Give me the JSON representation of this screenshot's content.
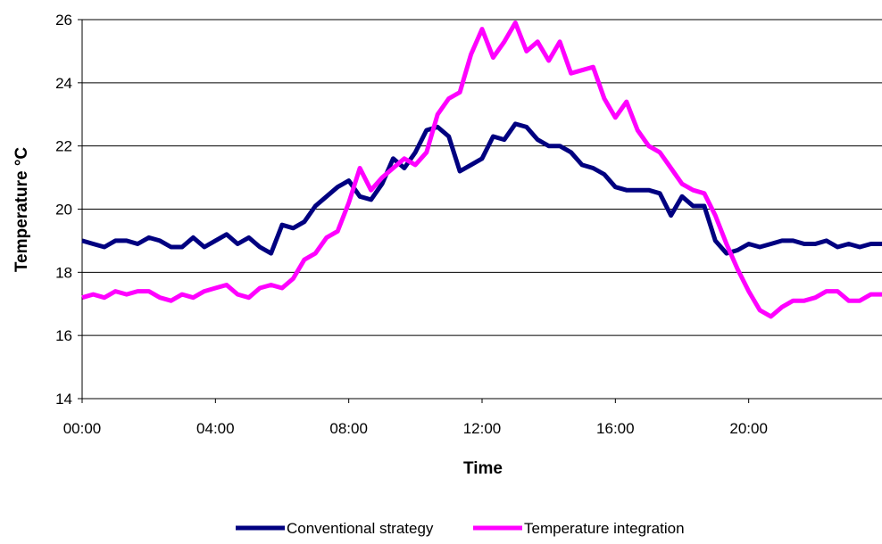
{
  "chart_data": {
    "type": "line",
    "xlabel": "Time",
    "ylabel": "Temperature °C",
    "ylim": [
      14,
      26
    ],
    "yticks": [
      "14",
      "16",
      "18",
      "20",
      "22",
      "24",
      "26"
    ],
    "xlim": [
      "00:00",
      "24:00"
    ],
    "xticks": [
      "00:00",
      "04:00",
      "08:00",
      "12:00",
      "16:00",
      "20:00"
    ],
    "grid": "horizontal",
    "legend_position": "bottom",
    "series": [
      {
        "name": "Conventional strategy",
        "color": "#000080",
        "x": [
          "00:00",
          "00:20",
          "00:40",
          "01:00",
          "01:20",
          "01:40",
          "02:00",
          "02:20",
          "02:40",
          "03:00",
          "03:20",
          "03:40",
          "04:00",
          "04:20",
          "04:40",
          "05:00",
          "05:20",
          "05:40",
          "06:00",
          "06:20",
          "06:40",
          "07:00",
          "07:20",
          "07:40",
          "08:00",
          "08:20",
          "08:40",
          "09:00",
          "09:20",
          "09:40",
          "10:00",
          "10:20",
          "10:40",
          "11:00",
          "11:20",
          "11:40",
          "12:00",
          "12:20",
          "12:40",
          "13:00",
          "13:20",
          "13:40",
          "14:00",
          "14:20",
          "14:40",
          "15:00",
          "15:20",
          "15:40",
          "16:00",
          "16:20",
          "16:40",
          "17:00",
          "17:20",
          "17:40",
          "18:00",
          "18:20",
          "18:40",
          "19:00",
          "19:20",
          "19:40",
          "20:00",
          "20:20",
          "20:40",
          "21:00",
          "21:20",
          "21:40",
          "22:00",
          "22:20",
          "22:40",
          "23:00",
          "23:20",
          "23:40",
          "24:00"
        ],
        "values": [
          19.0,
          18.9,
          18.8,
          19.0,
          19.0,
          18.9,
          19.1,
          19.0,
          18.8,
          18.8,
          19.1,
          18.8,
          19.0,
          19.2,
          18.9,
          19.1,
          18.8,
          18.6,
          19.5,
          19.4,
          19.6,
          20.1,
          20.4,
          20.7,
          20.9,
          20.4,
          20.3,
          20.8,
          21.6,
          21.3,
          21.8,
          22.5,
          22.6,
          22.3,
          21.2,
          21.4,
          21.6,
          22.3,
          22.2,
          22.7,
          22.6,
          22.2,
          22.0,
          22.0,
          21.8,
          21.4,
          21.3,
          21.1,
          20.7,
          20.6,
          20.6,
          20.6,
          20.5,
          19.8,
          20.4,
          20.1,
          20.1,
          19.0,
          18.6,
          18.7,
          18.9,
          18.8,
          18.9,
          19.0,
          19.0,
          18.9,
          18.9,
          19.0,
          18.8,
          18.9,
          18.8,
          18.9,
          18.9
        ]
      },
      {
        "name": "Temperature integration",
        "color": "#FF00FF",
        "x": [
          "00:00",
          "00:20",
          "00:40",
          "01:00",
          "01:20",
          "01:40",
          "02:00",
          "02:20",
          "02:40",
          "03:00",
          "03:20",
          "03:40",
          "04:00",
          "04:20",
          "04:40",
          "05:00",
          "05:20",
          "05:40",
          "06:00",
          "06:20",
          "06:40",
          "07:00",
          "07:20",
          "07:40",
          "08:00",
          "08:20",
          "08:40",
          "09:00",
          "09:20",
          "09:40",
          "10:00",
          "10:20",
          "10:40",
          "11:00",
          "11:20",
          "11:40",
          "12:00",
          "12:20",
          "12:40",
          "13:00",
          "13:20",
          "13:40",
          "14:00",
          "14:20",
          "14:40",
          "15:00",
          "15:20",
          "15:40",
          "16:00",
          "16:20",
          "16:40",
          "17:00",
          "17:20",
          "17:40",
          "18:00",
          "18:20",
          "18:40",
          "19:00",
          "19:20",
          "19:40",
          "20:00",
          "20:20",
          "20:40",
          "21:00",
          "21:20",
          "21:40",
          "22:00",
          "22:20",
          "22:40",
          "23:00",
          "23:20",
          "23:40",
          "24:00"
        ],
        "values": [
          17.2,
          17.3,
          17.2,
          17.4,
          17.3,
          17.4,
          17.4,
          17.2,
          17.1,
          17.3,
          17.2,
          17.4,
          17.5,
          17.6,
          17.3,
          17.2,
          17.5,
          17.6,
          17.5,
          17.8,
          18.4,
          18.6,
          19.1,
          19.3,
          20.2,
          21.3,
          20.6,
          21.0,
          21.3,
          21.6,
          21.4,
          21.8,
          23.0,
          23.5,
          23.7,
          24.9,
          25.7,
          24.8,
          25.3,
          25.9,
          25.0,
          25.3,
          24.7,
          25.3,
          24.3,
          24.4,
          24.5,
          23.5,
          22.9,
          23.4,
          22.5,
          22.0,
          21.8,
          21.3,
          20.8,
          20.6,
          20.5,
          19.8,
          18.9,
          18.1,
          17.4,
          16.8,
          16.6,
          16.9,
          17.1,
          17.1,
          17.2,
          17.4,
          17.4,
          17.1,
          17.1,
          17.3,
          17.3
        ]
      }
    ]
  }
}
